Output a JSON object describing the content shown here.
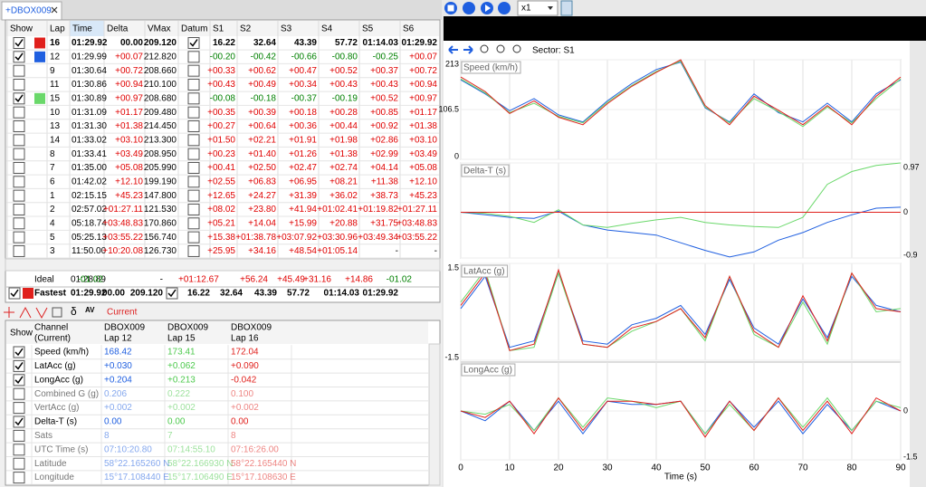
{
  "tab": {
    "title": "+DBOX009"
  },
  "lap_table": {
    "columns": [
      "Show",
      "Lap",
      "Time",
      "Delta",
      "VMax",
      "Datum",
      "S1",
      "S2",
      "S3",
      "S4",
      "S5",
      "S6"
    ],
    "rows": [
      {
        "show": true,
        "color": "#e0201c",
        "datum": true,
        "cells": [
          "16",
          "01:29.92",
          "00.00",
          "209.120",
          "16.22",
          "32.64",
          "43.39",
          "57.72",
          "01:14.03",
          "01:29.92"
        ]
      },
      {
        "show": true,
        "color": "#1f5fe0",
        "cells": [
          "12",
          "01:29.99",
          "+00.07",
          "212.820",
          "-00.20",
          "-00.42",
          "-00.66",
          "-00.80",
          "-00.25",
          "+00.07"
        ]
      },
      {
        "show": false,
        "cells": [
          "9",
          "01:30.64",
          "+00.72",
          "208.660",
          "+00.33",
          "+00.62",
          "+00.47",
          "+00.52",
          "+00.37",
          "+00.72"
        ]
      },
      {
        "show": false,
        "cells": [
          "11",
          "01:30.86",
          "+00.94",
          "210.100",
          "+00.43",
          "+00.49",
          "+00.34",
          "+00.43",
          "+00.43",
          "+00.94"
        ]
      },
      {
        "show": true,
        "color": "#6ad86a",
        "cells": [
          "15",
          "01:30.89",
          "+00.97",
          "208.680",
          "-00.08",
          "-00.18",
          "-00.37",
          "-00.19",
          "+00.52",
          "+00.97"
        ]
      },
      {
        "show": false,
        "cells": [
          "10",
          "01:31.09",
          "+01.17",
          "209.480",
          "+00.35",
          "+00.39",
          "+00.18",
          "+00.28",
          "+00.85",
          "+01.17"
        ]
      },
      {
        "show": false,
        "cells": [
          "13",
          "01:31.30",
          "+01.38",
          "214.450",
          "+00.27",
          "+00.64",
          "+00.36",
          "+00.44",
          "+00.92",
          "+01.38"
        ]
      },
      {
        "show": false,
        "cells": [
          "14",
          "01:33.02",
          "+03.10",
          "213.300",
          "+01.50",
          "+02.21",
          "+01.91",
          "+01.98",
          "+02.86",
          "+03.10"
        ]
      },
      {
        "show": false,
        "cells": [
          "8",
          "01:33.41",
          "+03.49",
          "208.950",
          "+00.23",
          "+01.40",
          "+01.26",
          "+01.38",
          "+02.99",
          "+03.49"
        ]
      },
      {
        "show": false,
        "cells": [
          "7",
          "01:35.00",
          "+05.08",
          "205.990",
          "+00.41",
          "+02.50",
          "+02.47",
          "+02.74",
          "+04.14",
          "+05.08"
        ]
      },
      {
        "show": false,
        "cells": [
          "6",
          "01:42.02",
          "+12.10",
          "199.190",
          "+02.55",
          "+06.83",
          "+06.95",
          "+08.21",
          "+11.38",
          "+12.10"
        ]
      },
      {
        "show": false,
        "cells": [
          "1",
          "02:15.15",
          "+45.23",
          "147.800",
          "+12.65",
          "+24.27",
          "+31.39",
          "+36.02",
          "+38.73",
          "+45.23"
        ]
      },
      {
        "show": false,
        "cells": [
          "2",
          "02:57.02",
          "+01:27.11",
          "121.530",
          "+08.02",
          "+23.80",
          "+41.94",
          "+01:02.41",
          "+01:19.82",
          "+01:27.11"
        ]
      },
      {
        "show": false,
        "cells": [
          "4",
          "05:18.74",
          "+03:48.83",
          "170.860",
          "+05.21",
          "+14.04",
          "+15.99",
          "+20.88",
          "+31.75",
          "+03:48.83"
        ]
      },
      {
        "show": false,
        "cells": [
          "5",
          "05:25.13",
          "+03:55.22",
          "156.740",
          "+15.38",
          "+01:38.78",
          "+03:07.92",
          "+03:30.96",
          "+03:49.34",
          "+03:55.22"
        ]
      },
      {
        "show": false,
        "cells": [
          "3",
          "11:50.00",
          "+10:20.08",
          "126.730",
          "+25.95",
          "+34.16",
          "+48.54",
          "+01:05.14",
          "-",
          "-"
        ]
      }
    ],
    "ideal": {
      "cells": [
        "Ideal",
        "01:28.89",
        "-01.02",
        "-",
        "+01:12.67",
        "+56.24",
        "+45.49",
        "+31.16",
        "+14.86",
        "-01.02"
      ]
    },
    "fastest": {
      "show": true,
      "color": "#e0201c",
      "datum": true,
      "cells": [
        "Fastest",
        "01:29.92",
        "00.00",
        "209.120",
        "16.22",
        "32.64",
        "43.39",
        "57.72",
        "01:14.03",
        "01:29.92"
      ]
    }
  },
  "toolbar": {
    "symbol": "δ",
    "av": "AV",
    "label": "Current"
  },
  "channel_table": {
    "headers": [
      [
        "Show"
      ],
      [
        "Channel",
        "(Current)"
      ],
      [
        "DBOX009",
        "Lap 12"
      ],
      [
        "DBOX009",
        "Lap 15"
      ],
      [
        "DBOX009",
        "Lap 16"
      ]
    ],
    "colors": [
      "#1f5fe0",
      "#4cc94c",
      "#e0201c"
    ],
    "rows": [
      {
        "show": true,
        "cells": [
          "Speed (km/h)",
          "168.42",
          "173.41",
          "172.04"
        ]
      },
      {
        "show": true,
        "cells": [
          "LatAcc (g)",
          "+0.030",
          "+0.062",
          "+0.090"
        ]
      },
      {
        "show": true,
        "cells": [
          "LongAcc (g)",
          "+0.204",
          "+0.213",
          "-0.042"
        ]
      },
      {
        "show": false,
        "cells": [
          "Combined G (g)",
          "0.206",
          "0.222",
          "0.100"
        ]
      },
      {
        "show": false,
        "cells": [
          "VertAcc (g)",
          "+0.002",
          "+0.002",
          "+0.002"
        ]
      },
      {
        "show": true,
        "cells": [
          "Delta-T (s)",
          "0.00",
          "0.00",
          "0.00"
        ]
      },
      {
        "show": false,
        "cells": [
          "Sats",
          "8",
          "7",
          "8"
        ]
      },
      {
        "show": false,
        "cells": [
          "UTC Time (s)",
          "07:10:20.80",
          "07:14:55.10",
          "07:16:26.00"
        ]
      },
      {
        "show": false,
        "cells": [
          "Latitude",
          "58°22.165260 N",
          "58°22.166930 N",
          "58°22.165440 N"
        ]
      },
      {
        "show": false,
        "cells": [
          "Longitude",
          "15°17.108440 E",
          "15°17.106490 E",
          "15°17.108630 E"
        ]
      }
    ]
  },
  "player": {
    "speed": "x1"
  },
  "chart_toolbar": {
    "sector": "Sector: S1"
  },
  "chart_data": [
    {
      "type": "line",
      "title": "Speed (km/h)",
      "ytick_side": "left",
      "x": [
        0,
        5,
        10,
        15,
        20,
        25,
        30,
        35,
        40,
        45,
        50,
        55,
        60,
        65,
        70,
        75,
        80,
        85,
        90
      ],
      "xlim": [
        0,
        90
      ],
      "ylim": [
        0,
        213
      ],
      "yticks": [
        0,
        106.5,
        213
      ],
      "series": [
        {
          "name": "Lap 12",
          "color": "#1f5fe0",
          "values": [
            170,
            140,
            104,
            130,
            95,
            80,
            125,
            162,
            192,
            208,
            110,
            80,
            140,
            100,
            80,
            120,
            80,
            140,
            170
          ]
        },
        {
          "name": "Lap 15",
          "color": "#6ad86a",
          "values": [
            172,
            142,
            100,
            120,
            92,
            78,
            122,
            158,
            188,
            210,
            112,
            78,
            130,
            102,
            70,
            112,
            78,
            130,
            172
          ]
        },
        {
          "name": "Lap 16",
          "color": "#e0201c",
          "values": [
            176,
            145,
            98,
            125,
            90,
            74,
            119,
            156,
            186,
            213,
            115,
            74,
            135,
            105,
            74,
            115,
            74,
            135,
            176
          ]
        }
      ]
    },
    {
      "type": "line",
      "title": "Delta-T (s)",
      "ytick_side": "right",
      "x": [
        0,
        5,
        10,
        15,
        20,
        25,
        30,
        35,
        40,
        45,
        50,
        55,
        60,
        65,
        70,
        75,
        80,
        85,
        90
      ],
      "xlim": [
        0,
        90
      ],
      "ylim": [
        -0.9,
        0.97
      ],
      "yticks": [
        -0.9,
        0,
        0.97
      ],
      "series": [
        {
          "name": "Lap 12",
          "color": "#1f5fe0",
          "values": [
            0,
            -0.05,
            -0.1,
            -0.12,
            0.02,
            -0.25,
            -0.35,
            -0.4,
            -0.45,
            -0.6,
            -0.75,
            -0.88,
            -0.78,
            -0.55,
            -0.4,
            -0.2,
            -0.05,
            0.08,
            0.1
          ]
        },
        {
          "name": "Lap 15",
          "color": "#6ad86a",
          "values": [
            0,
            -0.02,
            -0.08,
            -0.2,
            0.05,
            -0.25,
            -0.3,
            -0.22,
            -0.15,
            -0.1,
            -0.2,
            -0.25,
            -0.28,
            -0.3,
            -0.1,
            0.55,
            0.8,
            0.92,
            0.97
          ]
        },
        {
          "name": "Lap 16",
          "color": "#e0201c",
          "values": [
            0,
            0,
            0,
            0,
            0,
            0,
            0,
            0,
            0,
            0,
            0,
            0,
            0,
            0,
            0,
            0,
            0,
            0,
            0
          ]
        }
      ]
    },
    {
      "type": "line",
      "title": "LatAcc (g)",
      "ytick_side": "left",
      "x": [
        0,
        5,
        10,
        15,
        20,
        25,
        30,
        35,
        40,
        45,
        50,
        55,
        60,
        65,
        70,
        75,
        80,
        85,
        90
      ],
      "xlim": [
        0,
        90
      ],
      "ylim": [
        -1.5,
        1.5
      ],
      "yticks": [
        -1.5,
        1.5
      ],
      "series": [
        {
          "name": "Lap 12",
          "color": "#1f5fe0",
          "values": [
            0.1,
            1.1,
            -1.1,
            -0.9,
            1.2,
            -0.9,
            -1.0,
            -0.4,
            -0.2,
            0.2,
            -0.7,
            1.0,
            -0.5,
            -1.0,
            0.4,
            -0.8,
            1.1,
            0.2,
            0
          ]
        },
        {
          "name": "Lap 15",
          "color": "#6ad86a",
          "values": [
            0.3,
            1.3,
            -1.2,
            -1.1,
            1.2,
            -1.0,
            -1.1,
            -0.6,
            -0.3,
            0.1,
            -0.9,
            1.1,
            -0.7,
            -1.1,
            0.3,
            -1.0,
            1.2,
            0,
            0.1
          ]
        },
        {
          "name": "Lap 16",
          "color": "#e0201c",
          "values": [
            0.2,
            1.2,
            -1.2,
            -1.0,
            1.3,
            -1.0,
            -1.1,
            -0.5,
            -0.3,
            0.1,
            -0.8,
            1.1,
            -0.6,
            -1.1,
            0.5,
            -0.9,
            1.2,
            0.1,
            0
          ]
        }
      ]
    },
    {
      "type": "line",
      "title": "LongAcc (g)",
      "ytick_side": "right",
      "xlabel": "Time (s)",
      "x": [
        0,
        5,
        10,
        15,
        20,
        25,
        30,
        35,
        40,
        45,
        50,
        55,
        60,
        65,
        70,
        75,
        80,
        85,
        90
      ],
      "xlim": [
        0,
        90
      ],
      "xticks": [
        0,
        10,
        20,
        30,
        40,
        50,
        60,
        70,
        80,
        90
      ],
      "ylim": [
        -1.5,
        1.5
      ],
      "yticks": [
        -1.5,
        0
      ],
      "series": [
        {
          "name": "Lap 12",
          "color": "#1f5fe0",
          "values": [
            0,
            -0.3,
            0.3,
            -0.6,
            0.3,
            -0.7,
            0.3,
            0.2,
            0.2,
            0.3,
            -0.7,
            0.3,
            -0.5,
            0.3,
            -0.7,
            0.2,
            -0.6,
            0.3,
            0
          ]
        },
        {
          "name": "Lap 15",
          "color": "#6ad86a",
          "values": [
            0,
            -0.1,
            0.2,
            -0.6,
            0.4,
            -0.5,
            0.4,
            0.3,
            0.1,
            0.3,
            -0.7,
            0.2,
            -0.6,
            0.4,
            -0.5,
            0.4,
            -0.6,
            0.3,
            0.1
          ]
        },
        {
          "name": "Lap 16",
          "color": "#e0201c",
          "values": [
            0,
            -0.2,
            0.3,
            -0.7,
            0.4,
            -0.6,
            0.3,
            0.3,
            0.2,
            0.3,
            -0.8,
            0.3,
            -0.6,
            0.4,
            -0.6,
            0.3,
            -0.7,
            0.4,
            0
          ]
        }
      ]
    }
  ]
}
